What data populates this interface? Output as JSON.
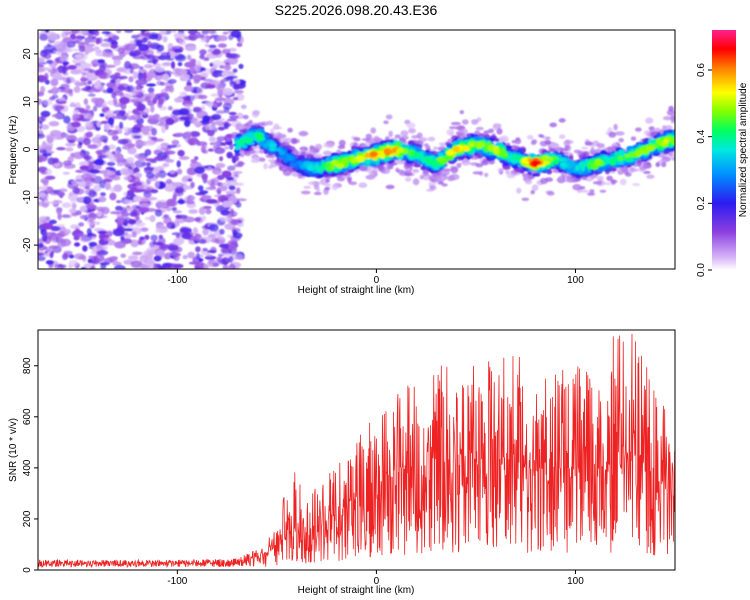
{
  "chart_data": [
    {
      "type": "heatmap",
      "title": "S225.2026.098.20.43.E36",
      "xlabel": "Height of straight line (km)",
      "ylabel": "Frequency (Hz)",
      "xlim": [
        -170,
        150
      ],
      "ylim": [
        -25,
        25
      ],
      "xticks": [
        -100,
        0,
        100
      ],
      "yticks": [
        -20,
        -10,
        0,
        10,
        20
      ],
      "colorbar": {
        "label": "Normalized spectral amplitude",
        "range": [
          0.0,
          0.72
        ],
        "ticks": [
          "0.0",
          "0.2",
          "0.4",
          "0.6"
        ],
        "tick_values": [
          0.0,
          0.2,
          0.4,
          0.6
        ]
      },
      "ridge": {
        "x": [
          -70,
          -60,
          -50,
          -40,
          -30,
          -20,
          -10,
          0,
          10,
          20,
          30,
          40,
          50,
          60,
          70,
          80,
          90,
          100,
          110,
          120,
          130,
          140,
          148
        ],
        "frequency": [
          1,
          3,
          0,
          -3,
          -4,
          -3,
          -2,
          -1,
          0,
          -1,
          -3,
          0,
          1,
          0,
          -2,
          -3,
          -2,
          -4,
          -3,
          -2,
          -1,
          1,
          2
        ],
        "peak_amplitude": [
          0.4,
          0.45,
          0.35,
          0.3,
          0.4,
          0.55,
          0.5,
          0.65,
          0.6,
          0.4,
          0.45,
          0.6,
          0.5,
          0.55,
          0.4,
          0.7,
          0.45,
          0.35,
          0.5,
          0.45,
          0.5,
          0.55,
          0.5
        ]
      },
      "noise_region": {
        "x_range": [
          -170,
          -68
        ],
        "amplitude": "low (violet)"
      }
    },
    {
      "type": "line",
      "xlabel": "Height of straight line (km)",
      "ylabel": "SNR (10 * v/v)",
      "xlim": [
        -170,
        150
      ],
      "ylim": [
        0,
        940
      ],
      "xticks": [
        -100,
        0,
        100
      ],
      "yticks": [
        0,
        200,
        400,
        600,
        800
      ],
      "series": [
        {
          "name": "SNR",
          "color": "#ee2222",
          "x": [
            -170,
            -150,
            -130,
            -110,
            -90,
            -70,
            -60,
            -50,
            -45,
            -40,
            -35,
            -30,
            -20,
            -10,
            0,
            10,
            20,
            30,
            40,
            50,
            60,
            70,
            80,
            90,
            100,
            110,
            120,
            130,
            140,
            150
          ],
          "envelope_max": [
            40,
            40,
            40,
            40,
            40,
            45,
            80,
            160,
            350,
            430,
            290,
            350,
            410,
            520,
            610,
            700,
            790,
            810,
            800,
            810,
            830,
            860,
            760,
            800,
            800,
            780,
            930,
            940,
            700,
            600
          ],
          "envelope_mean": [
            25,
            25,
            25,
            25,
            25,
            28,
            45,
            90,
            150,
            170,
            150,
            180,
            220,
            280,
            320,
            380,
            400,
            420,
            410,
            420,
            400,
            420,
            380,
            400,
            390,
            380,
            400,
            420,
            350,
            330
          ]
        }
      ]
    }
  ]
}
